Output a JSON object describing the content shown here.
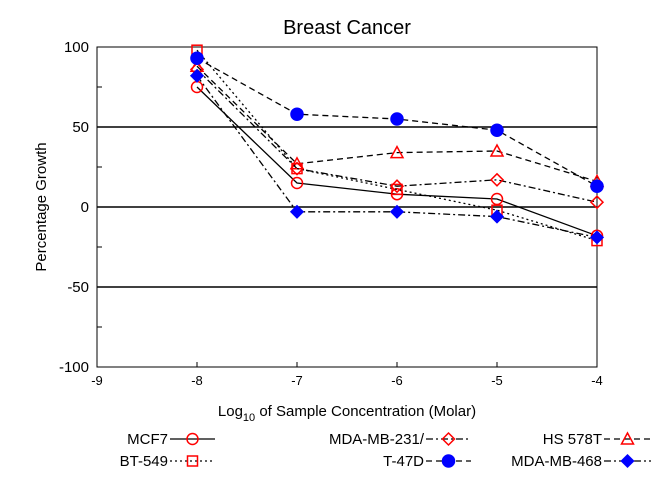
{
  "chart_data": {
    "type": "line",
    "title": "Breast Cancer",
    "xlabel_prefix": "Log",
    "xlabel_sub": "10",
    "xlabel_suffix": " of Sample Concentration (Molar)",
    "ylabel": "Percentage Growth",
    "xlim": [
      -9,
      -4
    ],
    "ylim": [
      -100,
      100
    ],
    "xticks": [
      -9,
      -8,
      -7,
      -6,
      -5,
      -4
    ],
    "yticks": [
      -100,
      -50,
      0,
      50,
      100
    ],
    "hlines": [
      50,
      0,
      -50
    ],
    "x": [
      -8,
      -7,
      -6,
      -5,
      -4
    ],
    "series": [
      {
        "name": "MCF7",
        "color": "#ff0000",
        "marker": "circle-open",
        "line": "solid",
        "values": [
          75,
          15,
          8,
          5,
          -18
        ]
      },
      {
        "name": "MDA-MB-231/",
        "color": "#ff0000",
        "marker": "diamond-open",
        "line": "dashdot",
        "values": [
          86,
          24,
          13,
          17,
          3
        ]
      },
      {
        "name": "HS 578T",
        "color": "#ff0000",
        "marker": "triangle-open",
        "line": "dash",
        "values": [
          88,
          27,
          34,
          35,
          16
        ]
      },
      {
        "name": "BT-549",
        "color": "#ff0000",
        "marker": "square-open",
        "line": "dot",
        "values": [
          98,
          24,
          11,
          -2,
          -21
        ]
      },
      {
        "name": "T-47D",
        "color": "#0000ff",
        "marker": "circle-filled",
        "line": "dash",
        "values": [
          93,
          58,
          55,
          48,
          13
        ]
      },
      {
        "name": "MDA-MB-468",
        "color": "#0000ff",
        "marker": "diamond-filled",
        "line": "dashdot",
        "values": [
          82,
          -3,
          -3,
          -6,
          -19
        ]
      }
    ]
  }
}
